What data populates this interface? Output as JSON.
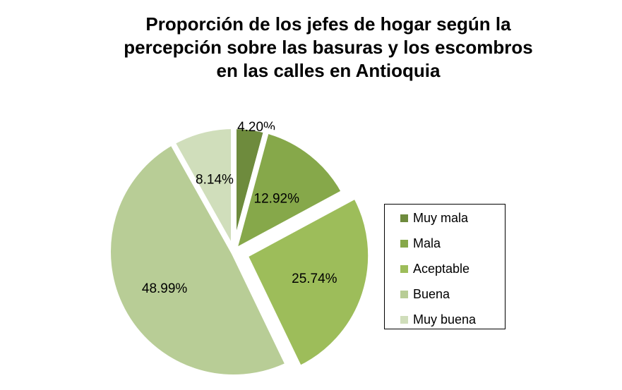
{
  "chart_data": {
    "type": "pie",
    "title_lines": [
      "Proporción de los jefes de  hogar según la",
      "percepción sobre las basuras y los escombros",
      "en las calles en Antioquia"
    ],
    "categories": [
      "Muy mala",
      "Mala",
      "Aceptable",
      "Buena",
      "Muy buena"
    ],
    "values": [
      4.2,
      12.92,
      25.74,
      48.99,
      8.14
    ],
    "labels": [
      "4.20%",
      "12.92%",
      "25.74%",
      "48.99%",
      "8.14%"
    ],
    "colors": [
      "#6E8B3D",
      "#86A84A",
      "#9DBD5A",
      "#B8CD96",
      "#D0DEBB"
    ],
    "exploded": true,
    "legend_position": "right"
  }
}
